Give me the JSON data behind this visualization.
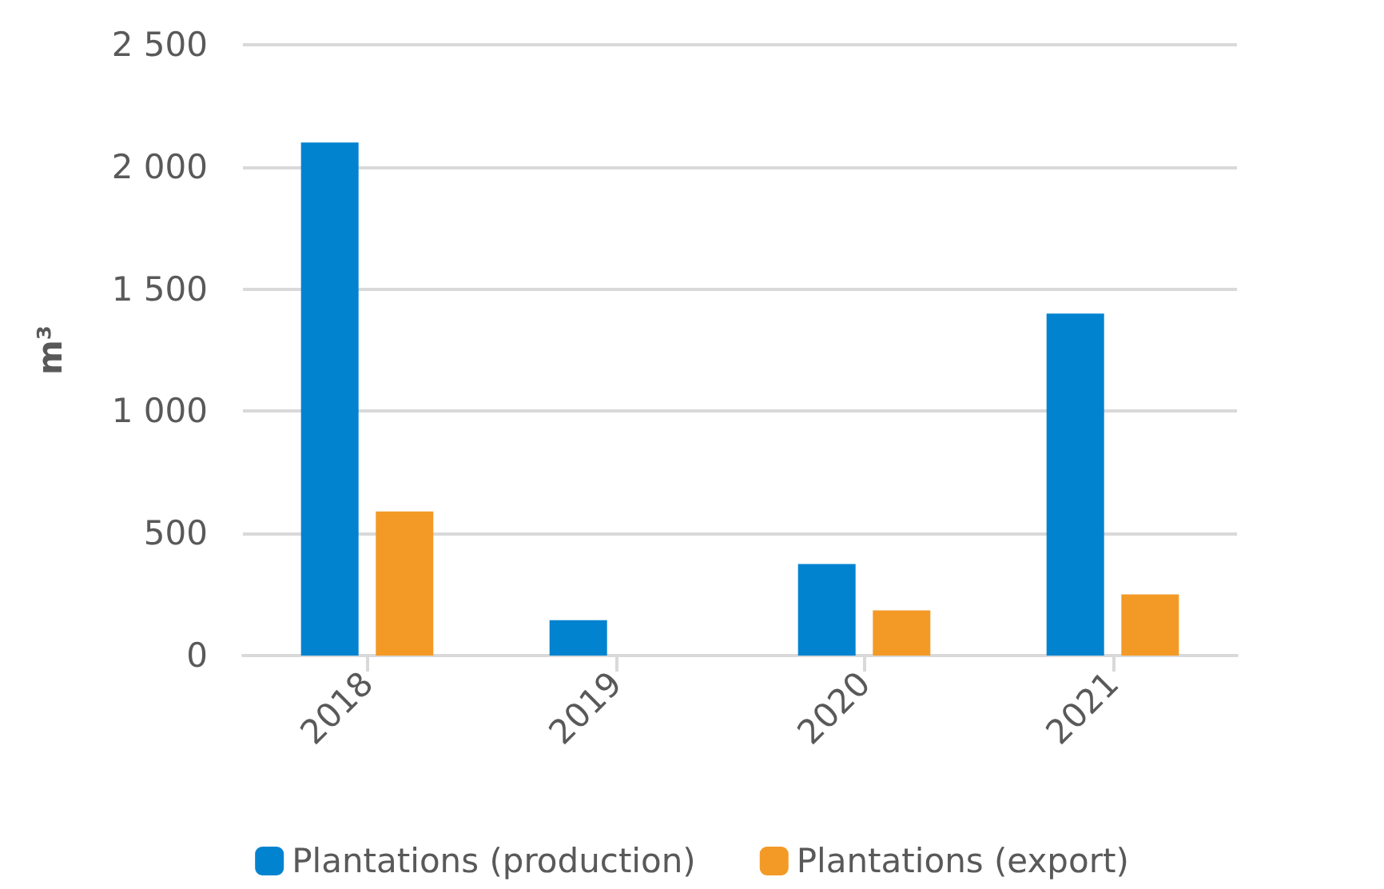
{
  "chart_data": {
    "type": "bar",
    "ylabel": "m³",
    "categories": [
      "2018",
      "2019",
      "2020",
      "2021"
    ],
    "series": [
      {
        "name": "Plantations (production)",
        "color": "#0283d0",
        "values": [
          2100,
          145,
          375,
          1400
        ]
      },
      {
        "name": "Plantations (export)",
        "color": "#f39a26",
        "values": [
          590,
          0,
          185,
          250
        ]
      }
    ],
    "ylim": [
      0,
      2500
    ],
    "yticks": [
      {
        "value": 0,
        "label": "0"
      },
      {
        "value": 500,
        "label": "500"
      },
      {
        "value": 1000,
        "label": "1 000"
      },
      {
        "value": 1500,
        "label": "1 500"
      },
      {
        "value": 2000,
        "label": "2 000"
      },
      {
        "value": 2500,
        "label": "2 500"
      }
    ],
    "grid": "y",
    "legend": "bottom"
  }
}
